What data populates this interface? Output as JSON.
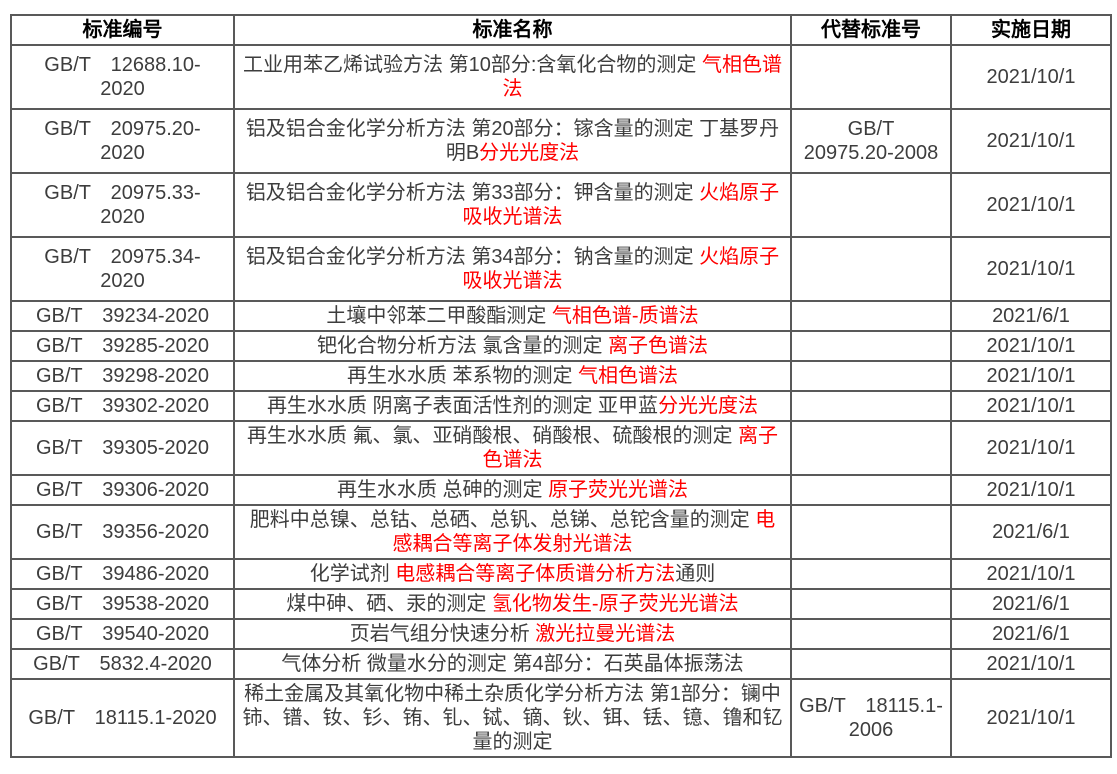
{
  "table": {
    "headers": [
      "标准编号",
      "标准名称",
      "代替标准号",
      "实施日期"
    ],
    "colors": {
      "highlight": "#ff0000",
      "border": "#595959",
      "body_text": "#3d3d3d"
    },
    "rows": [
      {
        "code": "GB/T　12688.10-\n2020",
        "name": [
          {
            "t": "工业用苯乙烯试验方法 第10部分:含氧化合物的测定 ",
            "red": false
          },
          {
            "t": "气相色谱法",
            "red": true
          }
        ],
        "replaced": "",
        "date": "2021/10/1"
      },
      {
        "code": "GB/T　20975.20-\n2020",
        "name": [
          {
            "t": "铝及铝合金化学分析方法 第20部分：镓含量的测定 丁基罗丹明B",
            "red": false
          },
          {
            "t": "分光光度法",
            "red": true
          }
        ],
        "replaced": "GB/T\n20975.20-2008",
        "date": "2021/10/1"
      },
      {
        "code": "GB/T　20975.33-\n2020",
        "name": [
          {
            "t": "铝及铝合金化学分析方法 第33部分：钾含量的测定 ",
            "red": false
          },
          {
            "t": "火焰原子吸收光谱法",
            "red": true
          }
        ],
        "replaced": "",
        "date": "2021/10/1"
      },
      {
        "code": "GB/T　20975.34-\n2020",
        "name": [
          {
            "t": "铝及铝合金化学分析方法 第34部分：钠含量的测定 ",
            "red": false
          },
          {
            "t": "火焰原子吸收光谱法",
            "red": true
          }
        ],
        "replaced": "",
        "date": "2021/10/1"
      },
      {
        "code": "GB/T　39234-2020",
        "name": [
          {
            "t": "土壤中邻苯二甲酸酯测定 ",
            "red": false
          },
          {
            "t": "气相色谱-质谱法",
            "red": true
          }
        ],
        "replaced": "",
        "date": "2021/6/1"
      },
      {
        "code": "GB/T　39285-2020",
        "name": [
          {
            "t": "钯化合物分析方法 氯含量的测定 ",
            "red": false
          },
          {
            "t": "离子色谱法",
            "red": true
          }
        ],
        "replaced": "",
        "date": "2021/10/1"
      },
      {
        "code": "GB/T　39298-2020",
        "name": [
          {
            "t": "再生水水质 苯系物的测定 ",
            "red": false
          },
          {
            "t": "气相色谱法",
            "red": true
          }
        ],
        "replaced": "",
        "date": "2021/10/1"
      },
      {
        "code": "GB/T　39302-2020",
        "name": [
          {
            "t": "再生水水质 阴离子表面活性剂的测定 亚甲蓝",
            "red": false
          },
          {
            "t": "分光光度法",
            "red": true
          }
        ],
        "replaced": "",
        "date": "2021/10/1"
      },
      {
        "code": "GB/T　39305-2020",
        "name": [
          {
            "t": "再生水水质 氟、氯、亚硝酸根、硝酸根、硫酸根的测定 ",
            "red": false
          },
          {
            "t": "离子色谱法",
            "red": true
          }
        ],
        "replaced": "",
        "date": "2021/10/1"
      },
      {
        "code": "GB/T　39306-2020",
        "name": [
          {
            "t": "再生水水质 总砷的测定 ",
            "red": false
          },
          {
            "t": "原子荧光光谱法",
            "red": true
          }
        ],
        "replaced": "",
        "date": "2021/10/1"
      },
      {
        "code": "GB/T　39356-2020",
        "name": [
          {
            "t": "肥料中总镍、总钴、总硒、总钒、总锑、总铊含量的测定 ",
            "red": false
          },
          {
            "t": "电感耦合等离子体发射光谱法",
            "red": true
          }
        ],
        "replaced": "",
        "date": "2021/6/1"
      },
      {
        "code": "GB/T　39486-2020",
        "name": [
          {
            "t": "化学试剂 ",
            "red": false
          },
          {
            "t": "电感耦合等离子体质谱分析方法",
            "red": true
          },
          {
            "t": "通则",
            "red": false
          }
        ],
        "replaced": "",
        "date": "2021/10/1"
      },
      {
        "code": "GB/T　39538-2020",
        "name": [
          {
            "t": "煤中砷、硒、汞的测定 ",
            "red": false
          },
          {
            "t": "氢化物发生-原子荧光光谱法",
            "red": true
          }
        ],
        "replaced": "",
        "date": "2021/6/1"
      },
      {
        "code": "GB/T　39540-2020",
        "name": [
          {
            "t": "页岩气组分快速分析 ",
            "red": false
          },
          {
            "t": "激光拉曼光谱法",
            "red": true
          }
        ],
        "replaced": "",
        "date": "2021/6/1"
      },
      {
        "code": "GB/T　5832.4-2020",
        "name": [
          {
            "t": "气体分析 微量水分的测定 第4部分：石英晶体振荡法",
            "red": false
          }
        ],
        "replaced": "",
        "date": "2021/10/1"
      },
      {
        "code": "GB/T　18115.1-2020",
        "name": [
          {
            "t": "稀土金属及其氧化物中稀土杂质化学分析方法 第1部分：镧中铈、镨、钕、钐、铕、钆、铽、镝、钬、铒、铥、镱、镥和钇量的测定",
            "red": false
          }
        ],
        "replaced": "GB/T　18115.1-\n2006",
        "date": "2021/10/1"
      }
    ]
  }
}
